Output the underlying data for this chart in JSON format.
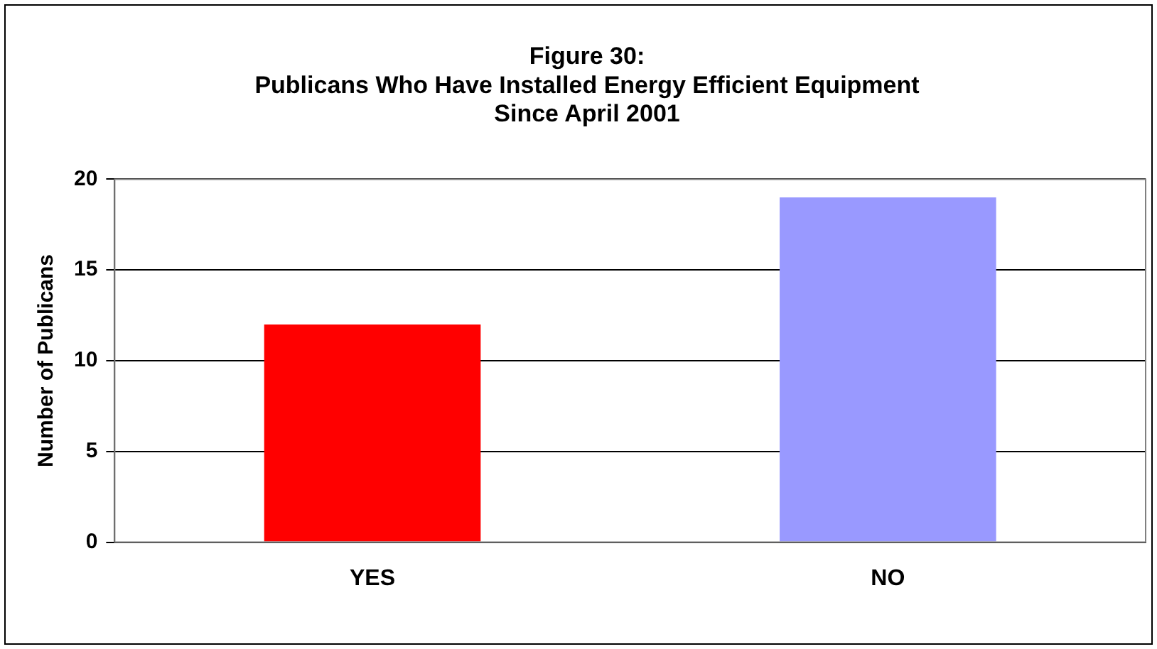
{
  "chart_data": {
    "type": "bar",
    "title": "Figure 30:\nPublicans Who Have Installed Energy Efficient Equipment\nSince April 2001",
    "ylabel": "Number of Publicans",
    "categories": [
      "YES",
      "NO"
    ],
    "values": [
      12,
      19
    ],
    "colors": [
      "#ff0000",
      "#9999ff"
    ],
    "ylim": [
      0,
      20
    ],
    "yticks": [
      0,
      5,
      10,
      15,
      20
    ],
    "grid": "y",
    "legend": false
  }
}
